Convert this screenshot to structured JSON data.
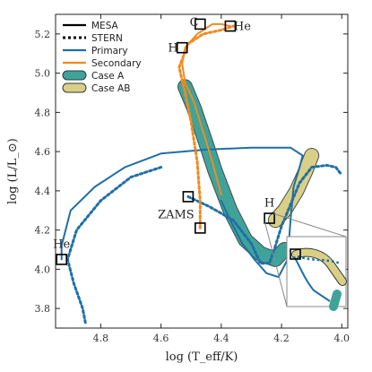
{
  "chart_data": {
    "type": "line",
    "xlabel": "log (T_eff/K)",
    "ylabel": "log (L/L_⊙)",
    "xlim": [
      4.95,
      3.98
    ],
    "ylim": [
      3.7,
      5.3
    ],
    "x_reversed": true,
    "x_ticks": [
      4.8,
      4.6,
      4.4,
      4.2,
      4.0
    ],
    "x_tick_labels": [
      "4.8",
      "4.6",
      "4.4",
      "4.2",
      "4.0"
    ],
    "y_ticks": [
      3.8,
      4.0,
      4.2,
      4.4,
      4.6,
      4.8,
      5.0,
      5.2
    ],
    "y_tick_labels": [
      "3.8",
      "4.0",
      "4.2",
      "4.4",
      "4.6",
      "4.8",
      "5.0",
      "5.2"
    ],
    "legend": {
      "placement": "top-left",
      "entries": [
        {
          "label": "MESA",
          "style": "solid",
          "color": "#000000"
        },
        {
          "label": "STERN",
          "style": "dotted",
          "color": "#000000"
        },
        {
          "label": "Primary",
          "style": "solid",
          "color": "#1f6fa5"
        },
        {
          "label": "Secondary",
          "style": "solid",
          "color": "#f28a1e"
        },
        {
          "label": "Case A",
          "style": "band",
          "color": "#3fa39a"
        },
        {
          "label": "Case AB",
          "style": "band",
          "color": "#d9cf86"
        }
      ]
    },
    "colors": {
      "primary": "#1f6fa5",
      "secondary": "#f28a1e",
      "case_a": "#3fa39a",
      "case_ab": "#d9cf86"
    },
    "series": [
      {
        "name": "Primary",
        "code": "MESA",
        "style": "solid",
        "color": "#1f6fa5",
        "points": [
          [
            4.4,
            4.35
          ],
          [
            4.37,
            4.25
          ],
          [
            4.33,
            4.13
          ],
          [
            4.29,
            4.05
          ],
          [
            4.25,
            3.98
          ],
          [
            4.21,
            3.96
          ],
          [
            4.18,
            4.05
          ],
          [
            4.17,
            4.25
          ],
          [
            4.16,
            4.42
          ],
          [
            4.14,
            4.52
          ],
          [
            4.13,
            4.58
          ],
          [
            4.17,
            4.62
          ],
          [
            4.3,
            4.62
          ],
          [
            4.45,
            4.61
          ],
          [
            4.6,
            4.59
          ],
          [
            4.72,
            4.52
          ],
          [
            4.82,
            4.42
          ],
          [
            4.9,
            4.3
          ],
          [
            4.93,
            4.12
          ],
          [
            4.93,
            4.05
          ]
        ]
      },
      {
        "name": "Primary",
        "code": "STERN",
        "style": "dotted",
        "color": "#1f6fa5",
        "points": [
          [
            4.51,
            4.37
          ],
          [
            4.44,
            4.32
          ],
          [
            4.36,
            4.25
          ],
          [
            4.3,
            4.13
          ],
          [
            4.27,
            4.03
          ],
          [
            4.24,
            4.03
          ],
          [
            4.22,
            4.12
          ],
          [
            4.2,
            4.22
          ],
          [
            4.17,
            4.33
          ],
          [
            4.14,
            4.44
          ],
          [
            4.1,
            4.52
          ],
          [
            4.05,
            4.53
          ],
          [
            4.02,
            4.52
          ],
          [
            4.0,
            4.48
          ]
        ]
      },
      {
        "name": "Primary",
        "code": "STERN-extension",
        "style": "dotted",
        "color": "#1f6fa5",
        "points": [
          [
            4.6,
            4.52
          ],
          [
            4.7,
            4.47
          ],
          [
            4.8,
            4.35
          ],
          [
            4.88,
            4.2
          ],
          [
            4.91,
            4.05
          ],
          [
            4.89,
            3.93
          ],
          [
            4.86,
            3.8
          ],
          [
            4.85,
            3.72
          ]
        ]
      },
      {
        "name": "Secondary",
        "code": "MESA",
        "style": "solid",
        "color": "#f28a1e",
        "points": [
          [
            4.4,
            4.38
          ],
          [
            4.43,
            4.55
          ],
          [
            4.46,
            4.7
          ],
          [
            4.49,
            4.85
          ],
          [
            4.52,
            4.95
          ],
          [
            4.53,
            5.05
          ],
          [
            4.52,
            5.13
          ],
          [
            4.48,
            5.2
          ],
          [
            4.43,
            5.25
          ],
          [
            4.4,
            5.25
          ],
          [
            4.37,
            5.24
          ]
        ]
      },
      {
        "name": "Secondary",
        "code": "STERN",
        "style": "dotted",
        "color": "#f28a1e",
        "points": [
          [
            4.47,
            4.21
          ],
          [
            4.47,
            4.35
          ],
          [
            4.48,
            4.55
          ],
          [
            4.5,
            4.75
          ],
          [
            4.52,
            4.9
          ],
          [
            4.54,
            5.03
          ],
          [
            4.51,
            5.15
          ],
          [
            4.46,
            5.2
          ],
          [
            4.4,
            5.22
          ],
          [
            4.36,
            5.24
          ]
        ]
      }
    ],
    "bands": [
      {
        "label": "Case A",
        "color": "#3fa39a",
        "points": [
          [
            4.52,
            4.93
          ],
          [
            4.49,
            4.82
          ],
          [
            4.45,
            4.64
          ],
          [
            4.42,
            4.5
          ],
          [
            4.37,
            4.3
          ],
          [
            4.32,
            4.15
          ],
          [
            4.27,
            4.08
          ],
          [
            4.22,
            4.05
          ],
          [
            4.19,
            4.1
          ]
        ]
      },
      {
        "label": "Case AB",
        "color": "#d9cf86",
        "points": [
          [
            4.22,
            4.25
          ],
          [
            4.19,
            4.3
          ],
          [
            4.15,
            4.4
          ],
          [
            4.12,
            4.5
          ],
          [
            4.1,
            4.58
          ]
        ]
      }
    ],
    "annotations": [
      {
        "text": "ZAMS",
        "x": 4.55,
        "y": 4.26
      },
      {
        "text": "He",
        "x": 4.93,
        "y": 4.11
      },
      {
        "text": "H",
        "x": 4.24,
        "y": 4.32
      },
      {
        "text": "H",
        "x": 4.56,
        "y": 5.11
      },
      {
        "text": "C",
        "x": 4.49,
        "y": 5.24
      },
      {
        "text": "He",
        "x": 4.33,
        "y": 5.22
      }
    ],
    "markers": [
      {
        "x": 4.93,
        "y": 4.05
      },
      {
        "x": 4.51,
        "y": 4.37
      },
      {
        "x": 4.47,
        "y": 4.21
      },
      {
        "x": 4.24,
        "y": 4.26
      },
      {
        "x": 4.53,
        "y": 5.13
      },
      {
        "x": 4.47,
        "y": 5.25
      },
      {
        "x": 4.37,
        "y": 5.24
      }
    ],
    "inset": {
      "present": true,
      "border_color": "#888888"
    }
  }
}
